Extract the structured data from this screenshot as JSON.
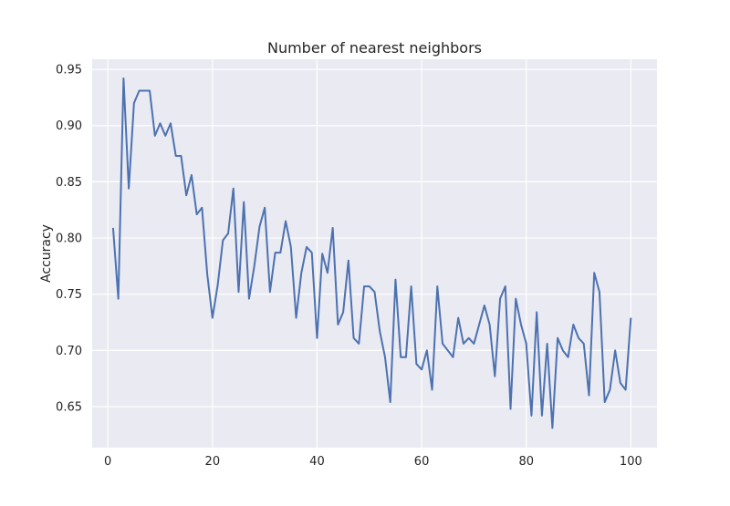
{
  "chart_data": {
    "type": "line",
    "title": "Number of nearest neighbors",
    "xlabel": "",
    "ylabel": "Accuracy",
    "xlim": [
      -3,
      105
    ],
    "ylim": [
      0.6135,
      0.959
    ],
    "xticks": [
      0,
      20,
      40,
      60,
      80,
      100
    ],
    "yticks": [
      0.65,
      0.7,
      0.75,
      0.8,
      0.85,
      0.9,
      0.95
    ],
    "xtick_labels": [
      "0",
      "20",
      "40",
      "60",
      "80",
      "100"
    ],
    "ytick_labels": [
      "0.65",
      "0.70",
      "0.75",
      "0.80",
      "0.85",
      "0.90",
      "0.95"
    ],
    "grid": true,
    "background_color": "#eaeaf2",
    "grid_color": "#ffffff",
    "line_color": "#4c72b0",
    "series": [
      {
        "x": [
          1,
          2,
          3,
          4,
          5,
          6,
          7,
          8,
          9,
          10,
          11,
          12,
          13,
          14,
          15,
          16,
          17,
          18,
          19,
          20,
          21,
          22,
          23,
          24,
          25,
          26,
          27,
          28,
          29,
          30,
          31,
          32,
          33,
          34,
          35,
          36,
          37,
          38,
          39,
          40,
          41,
          42,
          43,
          44,
          45,
          46,
          47,
          48,
          49,
          50,
          51,
          52,
          53,
          54,
          55,
          56,
          57,
          58,
          59,
          60,
          61,
          62,
          63,
          64,
          65,
          66,
          67,
          68,
          69,
          70,
          71,
          72,
          73,
          74,
          75,
          76,
          77,
          78,
          79,
          80,
          81,
          82,
          83,
          84,
          85,
          86,
          87,
          88,
          89,
          90,
          91,
          92,
          93,
          94,
          95,
          96,
          97,
          98,
          99,
          100
        ],
        "values": [
          0.809,
          0.746,
          0.942,
          0.844,
          0.92,
          0.931,
          0.931,
          0.931,
          0.891,
          0.902,
          0.891,
          0.902,
          0.873,
          0.873,
          0.838,
          0.856,
          0.821,
          0.827,
          0.768,
          0.729,
          0.758,
          0.798,
          0.804,
          0.844,
          0.752,
          0.832,
          0.746,
          0.775,
          0.81,
          0.827,
          0.752,
          0.787,
          0.787,
          0.815,
          0.792,
          0.729,
          0.769,
          0.792,
          0.787,
          0.711,
          0.786,
          0.769,
          0.809,
          0.723,
          0.734,
          0.78,
          0.711,
          0.706,
          0.757,
          0.757,
          0.752,
          0.717,
          0.694,
          0.654,
          0.763,
          0.694,
          0.694,
          0.757,
          0.688,
          0.683,
          0.7,
          0.665,
          0.757,
          0.706,
          0.7,
          0.694,
          0.729,
          0.706,
          0.711,
          0.706,
          0.723,
          0.74,
          0.723,
          0.677,
          0.746,
          0.757,
          0.648,
          0.746,
          0.723,
          0.706,
          0.642,
          0.734,
          0.642,
          0.706,
          0.631,
          0.711,
          0.7,
          0.694,
          0.723,
          0.711,
          0.706,
          0.66,
          0.769,
          0.752,
          0.654,
          0.665,
          0.7,
          0.671,
          0.665,
          0.729
        ]
      }
    ]
  }
}
